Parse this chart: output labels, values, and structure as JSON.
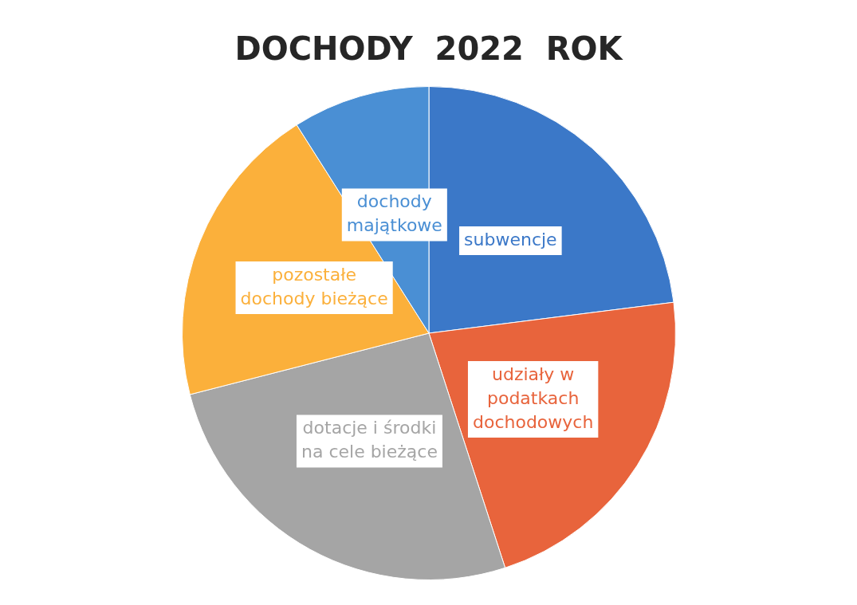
{
  "chart_data": {
    "type": "pie",
    "title": "DOCHODY  2022  ROK",
    "categories": [
      "subwencje",
      "udziały w podatkach dochodowych",
      "dotacje i środki na cele bieżące",
      "pozostałe dochody bieżące",
      "dochody majątkowe"
    ],
    "values": [
      23,
      22,
      26,
      20,
      9
    ],
    "colors": [
      "#3b78c8",
      "#e8643c",
      "#a5a5a5",
      "#fbb03b",
      "#4a8fd4"
    ],
    "legend": false
  }
}
